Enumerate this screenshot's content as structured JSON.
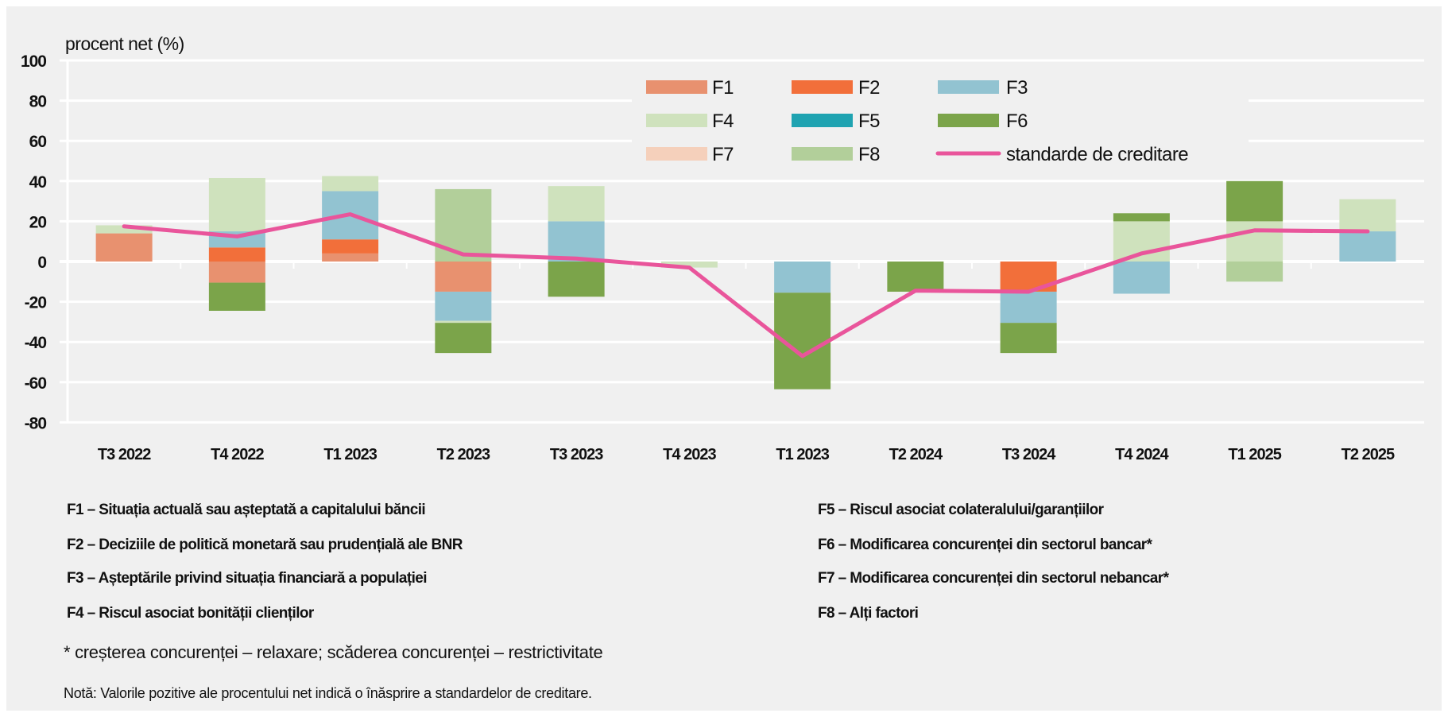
{
  "chart_data": {
    "type": "bar",
    "stacked": true,
    "ylabel": "procent net (%)",
    "ylim": [
      -80,
      100
    ],
    "yticks": [
      100,
      80,
      60,
      40,
      20,
      0,
      -20,
      -40,
      -60,
      -80
    ],
    "grid": true,
    "legend_position": "top-right",
    "categories": [
      "T3 2022",
      "T4 2022",
      "T1 2023",
      "T2 2023",
      "T3 2023",
      "T4 2023",
      "T1 2023",
      "T2 2024",
      "T3 2024",
      "T4 2024",
      "T1 2025",
      "T2 2025"
    ],
    "series": [
      {
        "name": "F1",
        "color": "#e8916f",
        "values": [
          14,
          -10.5,
          4,
          -15,
          0,
          0,
          0,
          0,
          0,
          0,
          0,
          0
        ]
      },
      {
        "name": "F2",
        "color": "#f26f3a",
        "values": [
          0,
          7,
          7,
          0,
          0,
          0,
          0,
          0,
          -15,
          0,
          0,
          0
        ]
      },
      {
        "name": "F3",
        "color": "#92c3d1",
        "values": [
          0,
          8,
          24,
          -14.5,
          20,
          0,
          -15.5,
          0,
          -15.5,
          -16,
          0,
          15
        ]
      },
      {
        "name": "F4",
        "color": "#cfe2bd",
        "values": [
          4,
          26.5,
          7.5,
          -1,
          17.5,
          -3,
          0,
          0,
          0,
          20,
          20,
          16
        ]
      },
      {
        "name": "F5",
        "color": "#1fa3b1",
        "values": [
          0,
          0,
          0,
          0,
          0,
          0,
          0,
          0,
          0,
          0,
          0,
          0
        ]
      },
      {
        "name": "F6",
        "color": "#7ba44a",
        "values": [
          0,
          -14,
          0,
          -15,
          -17.5,
          0,
          -48,
          -15,
          -15,
          4,
          20,
          0
        ]
      },
      {
        "name": "F7",
        "color": "#f5d0bb",
        "values": [
          0,
          0,
          0,
          0,
          0,
          0,
          0,
          0,
          0,
          0,
          0,
          0
        ]
      },
      {
        "name": "F8",
        "color": "#b2cf9a",
        "values": [
          0,
          0,
          0,
          36,
          0,
          0,
          0,
          0,
          0,
          0,
          -10,
          0
        ]
      }
    ],
    "line": {
      "name": "standarde de creditare",
      "color": "#e9559b",
      "values": [
        17.5,
        12.5,
        23.5,
        3.5,
        1.5,
        -3,
        -47,
        -14.5,
        -15,
        4,
        15.5,
        15
      ]
    }
  },
  "footnotes": {
    "left": [
      "F1 – Situația actuală sau așteptată a capitalului băncii",
      "F2 – Deciziile de politică monetară sau prudențială ale BNR",
      "F3 – Așteptările privind situația financiară a populației",
      "F4 – Riscul asociat bonității clienților"
    ],
    "right": [
      "F5 – Riscul asociat colateralului/garanțiilor",
      "F6 – Modificarea concurenței din sectorul bancar*",
      "F7 – Modificarea concurenței din sectorul nebancar*",
      "F8 – Alți factori"
    ],
    "star": "* creșterea concurenței – relaxare; scăderea concurenței – restrictivitate",
    "note": "Notă: Valorile pozitive ale procentului net indică o înăsprire a standardelor de creditare."
  }
}
